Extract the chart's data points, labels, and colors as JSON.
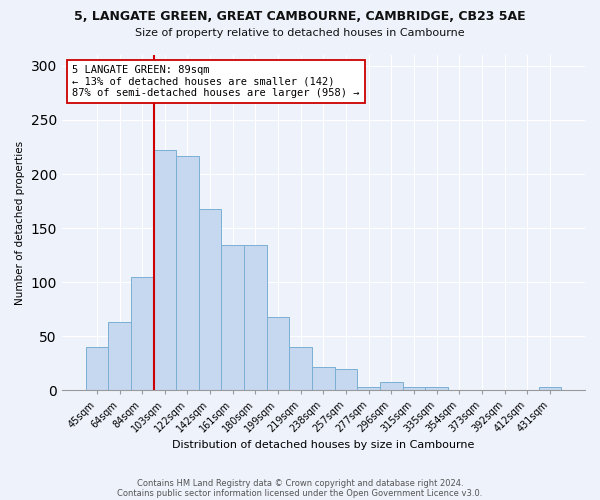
{
  "title_line1": "5, LANGATE GREEN, GREAT CAMBOURNE, CAMBRIDGE, CB23 5AE",
  "title_line2": "Size of property relative to detached houses in Cambourne",
  "xlabel": "Distribution of detached houses by size in Cambourne",
  "ylabel": "Number of detached properties",
  "categories": [
    "45sqm",
    "64sqm",
    "84sqm",
    "103sqm",
    "122sqm",
    "142sqm",
    "161sqm",
    "180sqm",
    "199sqm",
    "219sqm",
    "238sqm",
    "257sqm",
    "277sqm",
    "296sqm",
    "315sqm",
    "335sqm",
    "354sqm",
    "373sqm",
    "392sqm",
    "412sqm",
    "431sqm"
  ],
  "values": [
    40,
    63,
    105,
    222,
    217,
    168,
    134,
    134,
    68,
    40,
    22,
    20,
    3,
    8,
    3,
    3,
    0,
    0,
    0,
    0,
    3
  ],
  "bar_color": "#c5d8f0",
  "bar_edge_color": "#7bafd4",
  "vline_color": "#cc0000",
  "vline_index": 2.5,
  "annotation_text": "5 LANGATE GREEN: 89sqm\n← 13% of detached houses are smaller (142)\n87% of semi-detached houses are larger (958) →",
  "annotation_box_edge_color": "#cc0000",
  "annotation_box_face_color": "#ffffff",
  "ylim": [
    0,
    310
  ],
  "yticks": [
    0,
    50,
    100,
    150,
    200,
    250,
    300
  ],
  "footer_line1": "Contains HM Land Registry data © Crown copyright and database right 2024.",
  "footer_line2": "Contains public sector information licensed under the Open Government Licence v3.0.",
  "bg_color": "#eef2fb",
  "plot_bg_color": "#eef2fb",
  "grid_color": "#ffffff",
  "title_fontsize": 9,
  "subtitle_fontsize": 8,
  "xlabel_fontsize": 8,
  "ylabel_fontsize": 7.5,
  "tick_fontsize": 7,
  "footer_fontsize": 6,
  "annotation_fontsize": 7.5
}
